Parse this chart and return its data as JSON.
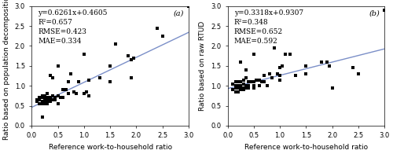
{
  "panel_a": {
    "label": "(a)",
    "equation": "y=0.6261x+0.4605",
    "r2": "R²=0.657",
    "rmse": "RMSE=0.423",
    "mae": "MAE=0.334",
    "slope": 0.6261,
    "intercept": 0.4605,
    "xlabel": "Reference work-to-household ratio",
    "ylabel": "Ratio based on population decomposition",
    "xlim": [
      0,
      3.0
    ],
    "ylim": [
      0,
      3.0
    ],
    "xticks": [
      0.0,
      0.5,
      1.0,
      1.5,
      2.0,
      2.5,
      3.0
    ],
    "yticks": [
      0.0,
      0.5,
      1.0,
      1.5,
      2.0,
      2.5,
      3.0
    ],
    "scatter_x": [
      0.1,
      0.1,
      0.15,
      0.15,
      0.15,
      0.2,
      0.2,
      0.2,
      0.2,
      0.2,
      0.25,
      0.25,
      0.25,
      0.25,
      0.25,
      0.25,
      0.3,
      0.3,
      0.3,
      0.3,
      0.3,
      0.35,
      0.35,
      0.35,
      0.35,
      0.4,
      0.4,
      0.4,
      0.45,
      0.45,
      0.5,
      0.5,
      0.5,
      0.55,
      0.6,
      0.6,
      0.65,
      0.7,
      0.7,
      0.75,
      0.8,
      0.85,
      0.9,
      1.0,
      1.0,
      1.05,
      1.1,
      1.1,
      1.3,
      1.5,
      1.5,
      1.6,
      1.85,
      1.9,
      1.9,
      1.95,
      2.4,
      2.5,
      3.0
    ],
    "scatter_y": [
      0.6,
      0.65,
      0.55,
      0.65,
      0.7,
      0.22,
      0.55,
      0.6,
      0.7,
      0.75,
      0.55,
      0.6,
      0.65,
      0.65,
      0.7,
      0.75,
      0.55,
      0.6,
      0.65,
      0.7,
      0.8,
      0.6,
      0.65,
      0.7,
      1.25,
      0.65,
      0.75,
      1.2,
      0.65,
      0.7,
      0.55,
      0.75,
      1.5,
      0.7,
      0.7,
      0.9,
      0.9,
      0.8,
      1.1,
      1.3,
      0.85,
      0.8,
      1.1,
      0.8,
      1.8,
      0.85,
      0.75,
      1.15,
      1.2,
      1.5,
      1.1,
      2.05,
      1.75,
      1.65,
      1.2,
      1.7,
      2.45,
      2.25,
      3.0
    ]
  },
  "panel_b": {
    "label": "(b)",
    "equation": "y=0.3318x+0.9307",
    "r2": "R²=0.348",
    "rmse": "RMSE=0.652",
    "mae": "MAE=0.592",
    "slope": 0.3318,
    "intercept": 0.9307,
    "xlabel": "Reference work-to-household ratio",
    "ylabel": "Ratio based on raw RTUD",
    "xlim": [
      0,
      3.0
    ],
    "ylim": [
      0,
      3.0
    ],
    "xticks": [
      0.0,
      0.5,
      1.0,
      1.5,
      2.0,
      2.5,
      3.0
    ],
    "yticks": [
      0.0,
      0.5,
      1.0,
      1.5,
      2.0,
      2.5,
      3.0
    ],
    "scatter_x": [
      0.1,
      0.1,
      0.15,
      0.15,
      0.15,
      0.15,
      0.2,
      0.2,
      0.2,
      0.2,
      0.25,
      0.25,
      0.25,
      0.25,
      0.25,
      0.3,
      0.3,
      0.3,
      0.3,
      0.35,
      0.35,
      0.35,
      0.35,
      0.4,
      0.4,
      0.4,
      0.45,
      0.5,
      0.5,
      0.5,
      0.5,
      0.55,
      0.6,
      0.6,
      0.65,
      0.7,
      0.7,
      0.75,
      0.8,
      0.85,
      0.9,
      0.95,
      1.0,
      1.0,
      1.0,
      1.05,
      1.1,
      1.2,
      1.3,
      1.5,
      1.5,
      1.8,
      1.9,
      1.95,
      2.0,
      2.4,
      2.5,
      3.0
    ],
    "scatter_y": [
      0.9,
      1.05,
      0.85,
      0.95,
      1.0,
      1.1,
      0.85,
      0.95,
      1.0,
      1.1,
      0.9,
      0.95,
      1.0,
      1.1,
      1.6,
      0.9,
      0.95,
      1.05,
      1.15,
      0.95,
      1.0,
      1.2,
      1.4,
      0.95,
      1.0,
      1.1,
      1.1,
      0.95,
      1.0,
      1.1,
      1.8,
      1.15,
      1.0,
      1.15,
      1.1,
      1.1,
      1.25,
      1.0,
      1.3,
      1.2,
      1.95,
      1.3,
      1.15,
      1.25,
      1.45,
      1.5,
      1.8,
      1.8,
      1.25,
      1.5,
      1.3,
      1.6,
      1.6,
      1.5,
      0.95,
      1.45,
      1.3,
      2.9
    ]
  },
  "line_color": "#7b8fc8",
  "marker_color": "black",
  "marker_size": 5,
  "annotation_fontsize": 6.5,
  "label_fontsize": 6.5,
  "tick_fontsize": 6,
  "bg_color": "#ffffff"
}
